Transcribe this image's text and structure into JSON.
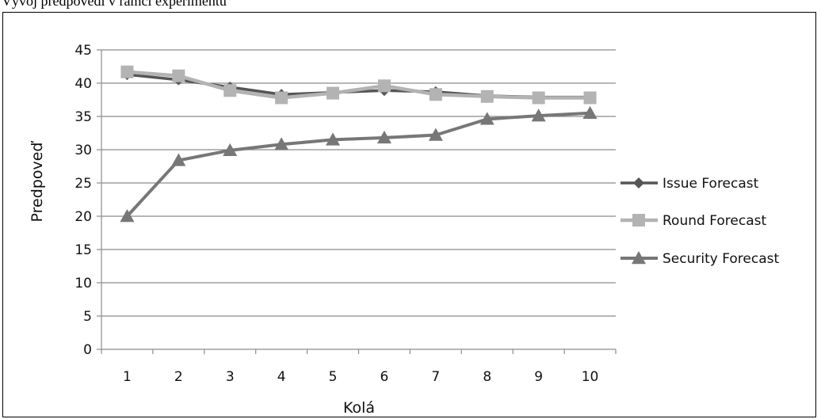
{
  "caption_fragment": "Vývoj predpovedí v rámci experimentu",
  "chart_data": {
    "type": "line",
    "categories": [
      "1",
      "2",
      "3",
      "4",
      "5",
      "6",
      "7",
      "8",
      "9",
      "10"
    ],
    "xlabel": "Kolá",
    "ylabel": "Predpoveď",
    "ylim": [
      0,
      45
    ],
    "yticks": [
      0,
      5,
      10,
      15,
      20,
      25,
      30,
      35,
      40,
      45
    ],
    "grid": true,
    "legend": "right",
    "series": [
      {
        "name": "Issue Forecast",
        "marker": "diamond",
        "color": "#555555",
        "values": [
          41.3,
          40.5,
          39.4,
          38.3,
          38.6,
          38.9,
          38.7,
          38.1,
          37.9,
          37.9
        ]
      },
      {
        "name": "Round Forecast",
        "marker": "square",
        "color": "#b3b3b3",
        "values": [
          41.7,
          41.1,
          38.9,
          37.8,
          38.5,
          39.6,
          38.3,
          38.0,
          37.8,
          37.8
        ]
      },
      {
        "name": "Security Forecast",
        "marker": "triangle",
        "color": "#777777",
        "values": [
          20.0,
          28.4,
          29.9,
          30.8,
          31.5,
          31.8,
          32.2,
          34.6,
          35.1,
          35.5
        ]
      }
    ]
  }
}
